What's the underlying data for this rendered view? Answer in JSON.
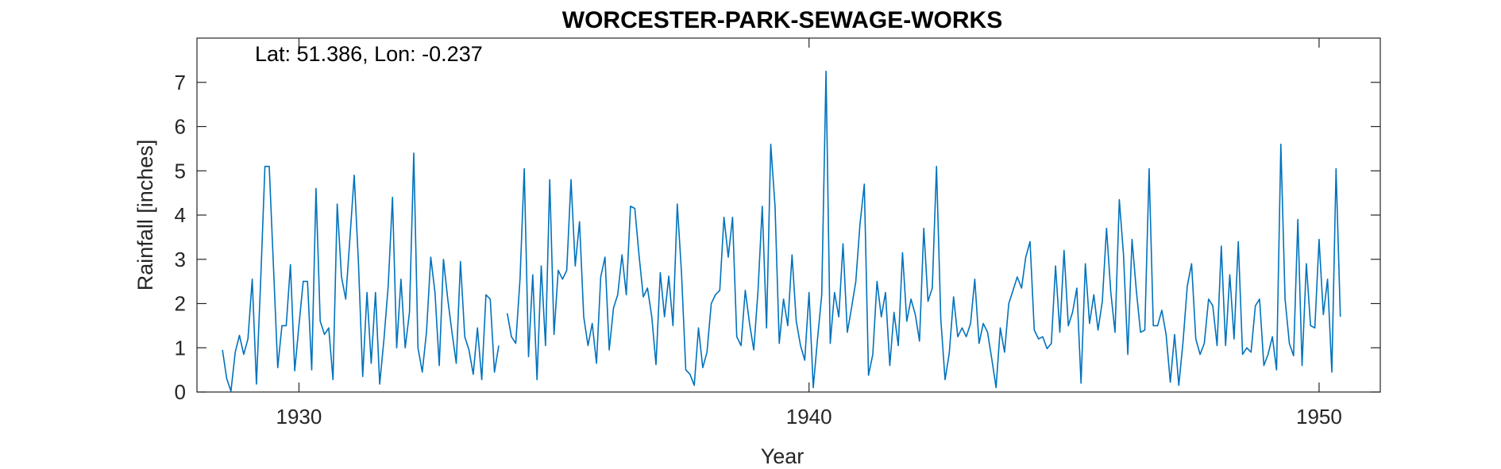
{
  "chart_data": {
    "type": "line",
    "title": "WORCESTER-PARK-SEWAGE-WORKS",
    "annotation": "Lat: 51.386, Lon: -0.237",
    "xlabel": "Year",
    "ylabel": "Rainfall [inches]",
    "xlim": [
      1928,
      1951.2
    ],
    "ylim": [
      0,
      8
    ],
    "xticks": [
      1930,
      1940,
      1950
    ],
    "yticks": [
      0,
      1,
      2,
      3,
      4,
      5,
      6,
      7
    ],
    "grid": false,
    "line_color": "#0072BD",
    "series": [
      {
        "x_start": 1928.5,
        "step": 0.0833333,
        "values": [
          0.95,
          0.3,
          0.02,
          0.9,
          1.28,
          0.85,
          1.2,
          2.55,
          0.18,
          2.55,
          5.1,
          5.1,
          2.85,
          0.55,
          1.5,
          1.5,
          2.88,
          0.48,
          1.5,
          2.5,
          2.5,
          0.5,
          4.6,
          1.6,
          1.3,
          1.45,
          0.28,
          4.25,
          2.6,
          2.1,
          3.5,
          4.9,
          2.9,
          0.35,
          2.25,
          0.65,
          2.25,
          0.18,
          1.2,
          2.4,
          4.4,
          1.0,
          2.55,
          1.0,
          1.8,
          5.4,
          1.0,
          0.45,
          1.35,
          3.05,
          2.25,
          0.6,
          3.0,
          2.1,
          1.35,
          0.65,
          2.95,
          1.25,
          0.95,
          0.4,
          1.45,
          0.28,
          2.2,
          2.1,
          0.45,
          1.05,
          null,
          1.78,
          1.25,
          1.1,
          2.55,
          5.05,
          0.8,
          2.65,
          0.28,
          2.85,
          1.05,
          4.8,
          1.3,
          2.75,
          2.55,
          2.75,
          4.8,
          2.85,
          3.85,
          1.7,
          1.05,
          1.55,
          0.65,
          2.6,
          3.05,
          0.95,
          1.9,
          2.2,
          3.1,
          2.2,
          4.2,
          4.15,
          3.1,
          2.15,
          2.35,
          1.7,
          0.62,
          2.7,
          1.7,
          2.62,
          1.5,
          4.25,
          2.7,
          0.5,
          0.4,
          0.15,
          1.45,
          0.55,
          0.9,
          2.0,
          2.2,
          2.3,
          3.95,
          3.05,
          3.95,
          1.25,
          1.05,
          2.3,
          1.55,
          0.95,
          2.3,
          4.2,
          1.45,
          5.6,
          4.2,
          1.1,
          2.1,
          1.5,
          3.1,
          1.6,
          1.05,
          0.72,
          2.25,
          0.1,
          1.2,
          2.2,
          7.25,
          1.1,
          2.25,
          1.7,
          3.35,
          1.35,
          1.9,
          2.5,
          3.8,
          4.7,
          0.38,
          0.85,
          2.5,
          1.7,
          2.25,
          0.6,
          1.8,
          1.05,
          3.15,
          1.6,
          2.1,
          1.75,
          1.15,
          3.7,
          2.05,
          2.35,
          5.1,
          1.65,
          0.28,
          0.88,
          2.15,
          1.25,
          1.45,
          1.25,
          1.55,
          2.55,
          1.1,
          1.55,
          1.35,
          0.75,
          0.1,
          1.45,
          0.9,
          2.0,
          2.3,
          2.6,
          2.35,
          3.05,
          3.4,
          1.4,
          1.2,
          1.25,
          0.98,
          1.1,
          2.85,
          1.35,
          3.2,
          1.5,
          1.8,
          2.35,
          0.2,
          2.9,
          1.55,
          2.2,
          1.4,
          2.05,
          3.7,
          2.25,
          1.35,
          4.35,
          3.1,
          0.85,
          3.45,
          2.3,
          1.35,
          1.4,
          5.05,
          1.5,
          1.5,
          1.85,
          1.3,
          0.22,
          1.3,
          0.15,
          1.15,
          2.4,
          2.9,
          1.2,
          0.85,
          1.1,
          2.1,
          1.95,
          1.05,
          3.3,
          1.05,
          2.65,
          1.2,
          3.4,
          0.85,
          1.0,
          0.9,
          1.95,
          2.1,
          0.6,
          0.85,
          1.25,
          0.5,
          5.6,
          2.1,
          1.1,
          0.82,
          3.9,
          0.6,
          2.9,
          1.5,
          1.45,
          3.45,
          1.75,
          2.55,
          0.45,
          5.05,
          1.7
        ]
      }
    ]
  }
}
